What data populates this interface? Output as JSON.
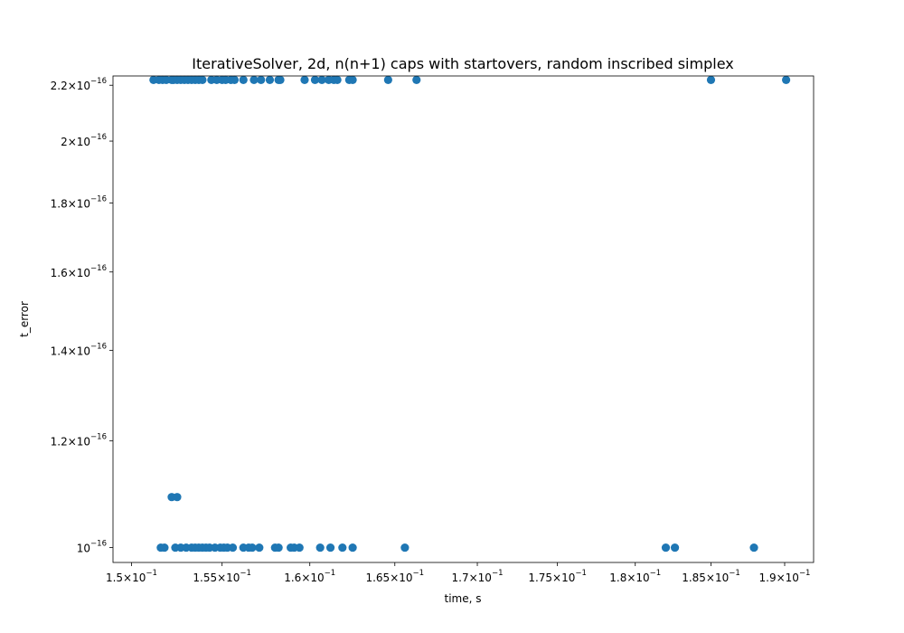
{
  "chart_data": {
    "type": "scatter",
    "title": "IterativeSolver, 2d, n(n+1) caps with startovers, random inscribed simplex",
    "xlabel": "time, s",
    "ylabel": "t_error",
    "xscale": "log",
    "yscale": "log",
    "xlim": [
      0.149,
      0.192
    ],
    "ylim": [
      9.75e-17,
      2.235e-16
    ],
    "grid": false,
    "marker_color": "#1f77b4",
    "x_ticks": [
      {
        "value": 0.15,
        "mantissa": "1.5",
        "base": "10",
        "exp": "−1"
      },
      {
        "value": 0.155,
        "mantissa": "1.55",
        "base": "10",
        "exp": "−1"
      },
      {
        "value": 0.16,
        "mantissa": "1.6",
        "base": "10",
        "exp": "−1"
      },
      {
        "value": 0.165,
        "mantissa": "1.65",
        "base": "10",
        "exp": "−1"
      },
      {
        "value": 0.17,
        "mantissa": "1.7",
        "base": "10",
        "exp": "−1"
      },
      {
        "value": 0.175,
        "mantissa": "1.75",
        "base": "10",
        "exp": "−1"
      },
      {
        "value": 0.18,
        "mantissa": "1.8",
        "base": "10",
        "exp": "−1"
      },
      {
        "value": 0.185,
        "mantissa": "1.85",
        "base": "10",
        "exp": "−1"
      },
      {
        "value": 0.19,
        "mantissa": "1.9",
        "base": "10",
        "exp": "−1"
      }
    ],
    "y_ticks": [
      {
        "value": 1e-16,
        "mantissa": "",
        "base": "10",
        "exp": "−16"
      },
      {
        "value": 1.2e-16,
        "mantissa": "1.2",
        "base": "10",
        "exp": "−16"
      },
      {
        "value": 1.4e-16,
        "mantissa": "1.4",
        "base": "10",
        "exp": "−16"
      },
      {
        "value": 1.6e-16,
        "mantissa": "1.6",
        "base": "10",
        "exp": "−16"
      },
      {
        "value": 1.8e-16,
        "mantissa": "1.8",
        "base": "10",
        "exp": "−16"
      },
      {
        "value": 2e-16,
        "mantissa": "2",
        "base": "10",
        "exp": "−16"
      },
      {
        "value": 2.2e-16,
        "mantissa": "2.2",
        "base": "10",
        "exp": "−16"
      }
    ],
    "series": [
      {
        "marker": "circle",
        "points": [
          [
            0.1512,
            2.22e-16
          ],
          [
            0.1515,
            2.22e-16
          ],
          [
            0.1517,
            2.22e-16
          ],
          [
            0.1519,
            2.22e-16
          ],
          [
            0.1522,
            2.22e-16
          ],
          [
            0.1523,
            2.22e-16
          ],
          [
            0.1525,
            2.22e-16
          ],
          [
            0.1527,
            2.22e-16
          ],
          [
            0.1529,
            2.22e-16
          ],
          [
            0.1531,
            2.22e-16
          ],
          [
            0.1533,
            2.22e-16
          ],
          [
            0.1535,
            2.22e-16
          ],
          [
            0.1537,
            2.22e-16
          ],
          [
            0.1539,
            2.22e-16
          ],
          [
            0.1544,
            2.22e-16
          ],
          [
            0.1547,
            2.22e-16
          ],
          [
            0.155,
            2.22e-16
          ],
          [
            0.1552,
            2.22e-16
          ],
          [
            0.1555,
            2.22e-16
          ],
          [
            0.1557,
            2.22e-16
          ],
          [
            0.1562,
            2.22e-16
          ],
          [
            0.1568,
            2.22e-16
          ],
          [
            0.1572,
            2.22e-16
          ],
          [
            0.1577,
            2.22e-16
          ],
          [
            0.1582,
            2.22e-16
          ],
          [
            0.1583,
            2.22e-16
          ],
          [
            0.1597,
            2.22e-16
          ],
          [
            0.1603,
            2.22e-16
          ],
          [
            0.1607,
            2.22e-16
          ],
          [
            0.1611,
            2.22e-16
          ],
          [
            0.1614,
            2.22e-16
          ],
          [
            0.1616,
            2.22e-16
          ],
          [
            0.1623,
            2.22e-16
          ],
          [
            0.1625,
            2.22e-16
          ],
          [
            0.1646,
            2.22e-16
          ],
          [
            0.1663,
            2.22e-16
          ],
          [
            0.185,
            2.22e-16
          ],
          [
            0.1901,
            2.22e-16
          ],
          [
            0.1522,
            1.09e-16
          ],
          [
            0.1525,
            1.09e-16
          ],
          [
            0.1516,
            1e-16
          ],
          [
            0.1518,
            1e-16
          ],
          [
            0.1524,
            1e-16
          ],
          [
            0.1527,
            1e-16
          ],
          [
            0.153,
            1e-16
          ],
          [
            0.1533,
            1e-16
          ],
          [
            0.1535,
            1e-16
          ],
          [
            0.1537,
            1e-16
          ],
          [
            0.1539,
            1e-16
          ],
          [
            0.1541,
            1e-16
          ],
          [
            0.1543,
            1e-16
          ],
          [
            0.1546,
            1e-16
          ],
          [
            0.1549,
            1e-16
          ],
          [
            0.1551,
            1e-16
          ],
          [
            0.1553,
            1e-16
          ],
          [
            0.1556,
            1e-16
          ],
          [
            0.1562,
            1e-16
          ],
          [
            0.1565,
            1e-16
          ],
          [
            0.1567,
            1e-16
          ],
          [
            0.1571,
            1e-16
          ],
          [
            0.158,
            1e-16
          ],
          [
            0.1582,
            1e-16
          ],
          [
            0.1589,
            1e-16
          ],
          [
            0.1591,
            1e-16
          ],
          [
            0.1594,
            1e-16
          ],
          [
            0.1606,
            1e-16
          ],
          [
            0.1612,
            1e-16
          ],
          [
            0.1619,
            1e-16
          ],
          [
            0.1625,
            1e-16
          ],
          [
            0.1656,
            1e-16
          ],
          [
            0.182,
            1e-16
          ],
          [
            0.1826,
            1e-16
          ],
          [
            0.1879,
            1e-16
          ]
        ]
      }
    ]
  }
}
